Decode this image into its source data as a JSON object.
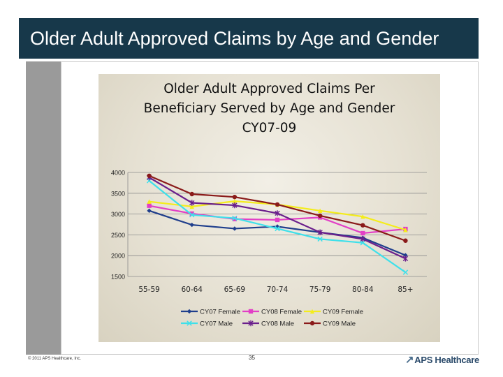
{
  "slide": {
    "title": "Older Adult Approved Claims by Age and Gender",
    "footer_copyright": "© 2011 APS Healthcare, Inc.",
    "page_number": "35",
    "brand": "APS Healthcare",
    "colors": {
      "title_bg": "#17384a",
      "sidebar": "#9a9a9a"
    }
  },
  "chart_data": {
    "type": "line",
    "title_lines": [
      "Older Adult Approved Claims Per",
      "Beneficiary Served by Age and Gender",
      "CY07-09"
    ],
    "categories": [
      "55-59",
      "60-64",
      "65-69",
      "70-74",
      "75-79",
      "80-84",
      "85+"
    ],
    "ylim": [
      1500,
      4000
    ],
    "yticks": [
      4000,
      3500,
      3000,
      2500,
      2000,
      1500
    ],
    "legend_position": "bottom",
    "series": [
      {
        "name": "CY07 Female",
        "color": "#1f3e8c",
        "marker": "diamond",
        "values": [
          3080,
          2740,
          2650,
          2700,
          2560,
          2430,
          2010
        ]
      },
      {
        "name": "CY08 Female",
        "color": "#e23fc6",
        "marker": "square",
        "values": [
          3200,
          3010,
          2880,
          2860,
          2920,
          2540,
          2640
        ]
      },
      {
        "name": "CY09 Female",
        "color": "#f4ec1c",
        "marker": "triangle",
        "values": [
          3300,
          3180,
          3310,
          3230,
          3080,
          2940,
          2620
        ]
      },
      {
        "name": "CY07 Male",
        "color": "#3fe0ea",
        "marker": "x",
        "values": [
          3800,
          2980,
          2900,
          2650,
          2400,
          2310,
          1600
        ]
      },
      {
        "name": "CY08 Male",
        "color": "#6a1f8c",
        "marker": "star",
        "values": [
          3880,
          3270,
          3210,
          3020,
          2560,
          2400,
          1930
        ]
      },
      {
        "name": "CY09 Male",
        "color": "#8a1a1a",
        "marker": "circle",
        "values": [
          3920,
          3480,
          3410,
          3230,
          2960,
          2730,
          2360
        ]
      }
    ]
  }
}
